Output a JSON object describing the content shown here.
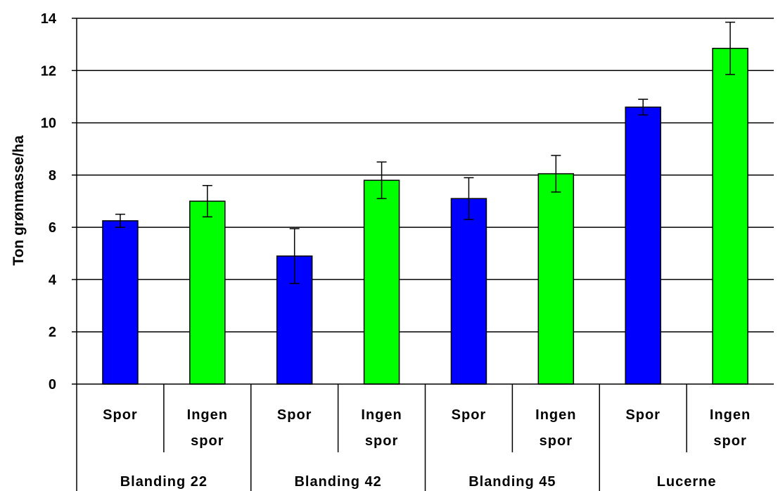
{
  "chart_data": {
    "type": "bar",
    "ylabel": "Ton grønmasse/ha",
    "ylim": [
      0,
      14
    ],
    "yticks": [
      0,
      2,
      4,
      6,
      8,
      10,
      12,
      14
    ],
    "grid": true,
    "groups": [
      "Blanding 22",
      "Blanding 42",
      "Blanding 45",
      "Lucerne"
    ],
    "categories": [
      {
        "line1": "Spor",
        "line2": ""
      },
      {
        "line1": "Ingen",
        "line2": "spor"
      },
      {
        "line1": "Spor",
        "line2": ""
      },
      {
        "line1": "Ingen",
        "line2": "spor"
      },
      {
        "line1": "Spor",
        "line2": ""
      },
      {
        "line1": "Ingen",
        "line2": "spor"
      },
      {
        "line1": "Spor",
        "line2": ""
      },
      {
        "line1": "Ingen",
        "line2": "spor"
      }
    ],
    "values": [
      6.25,
      7.0,
      4.9,
      7.8,
      7.1,
      8.05,
      10.6,
      12.85
    ],
    "errors": [
      0.25,
      0.6,
      1.05,
      0.7,
      0.8,
      0.7,
      0.3,
      1.0
    ],
    "colors": [
      "#0000ff",
      "#00ff00",
      "#0000ff",
      "#00ff00",
      "#0000ff",
      "#00ff00",
      "#0000ff",
      "#00ff00"
    ]
  }
}
